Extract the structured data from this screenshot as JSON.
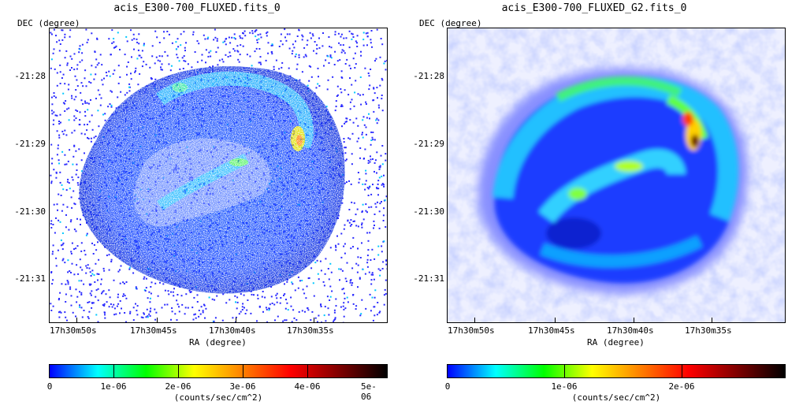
{
  "panels": [
    {
      "title": "acis_E300-700_FLUXED.fits_0",
      "dec_label": "DEC (degree)",
      "ra_label": "RA (degree)",
      "y_ticks": [
        "-21:28",
        "-21:29",
        "-21:30",
        "-21:31"
      ],
      "x_ticks": [
        "17h30m50s",
        "17h30m45s",
        "17h30m40s",
        "17h30m35s"
      ],
      "colorbar_ticks": [
        "0",
        "1e-06",
        "2e-06",
        "3e-06",
        "4e-06",
        "5e-06"
      ],
      "colorbar_unit": "(counts/sec/cm^2)",
      "style": "raw"
    },
    {
      "title": "acis_E300-700_FLUXED_G2.fits_0",
      "dec_label": "DEC (degree)",
      "ra_label": "RA (degree)",
      "y_ticks": [
        "-21:28",
        "-21:29",
        "-21:30",
        "-21:31"
      ],
      "x_ticks": [
        "17h30m50s",
        "17h30m45s",
        "17h30m40s",
        "17h30m35s"
      ],
      "colorbar_ticks": [
        "0",
        "1e-06",
        "2e-06"
      ],
      "colorbar_unit": "(counts/sec/cm^2)",
      "style": "smoothed"
    }
  ],
  "colormap": [
    "#ffffff",
    "#0000ff",
    "#00ffff",
    "#00ff00",
    "#ffff00",
    "#ff8000",
    "#ff0000",
    "#800000",
    "#000000"
  ]
}
